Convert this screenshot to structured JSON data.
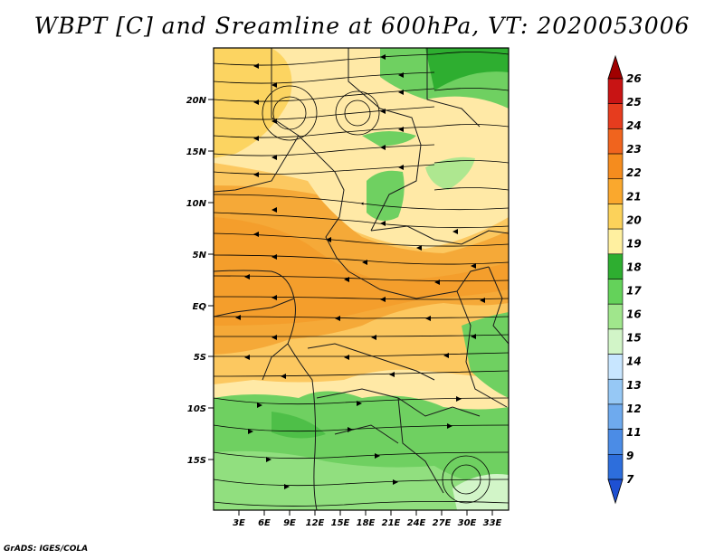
{
  "title": "WBPT [C] and Sreamline at 600hPa, VT: 2020053006",
  "credit": "GrADS: IGES/COLA",
  "map": {
    "lon_ticks": [
      "3E",
      "6E",
      "9E",
      "12E",
      "15E",
      "18E",
      "21E",
      "24E",
      "27E",
      "30E",
      "33E"
    ],
    "lat_ticks": [
      "20N",
      "15N",
      "10N",
      "5N",
      "EQ",
      "5S",
      "10S",
      "15S"
    ]
  },
  "colorbar": {
    "labels": [
      "26",
      "25",
      "24",
      "23",
      "22",
      "21",
      "20",
      "19",
      "18",
      "17",
      "16",
      "15",
      "14",
      "13",
      "12",
      "11",
      "9",
      "7"
    ],
    "colors": [
      "#a00000",
      "#c81414",
      "#e63c1e",
      "#f0641e",
      "#f58c1e",
      "#faa82d",
      "#fcd25a",
      "#fff0a0",
      "#2eae30",
      "#64d25a",
      "#a0e68c",
      "#d2f5c8",
      "#c8e6ff",
      "#96c8f5",
      "#6eaaee",
      "#4b8ce6",
      "#2d6edc",
      "#1e50d2"
    ]
  }
}
